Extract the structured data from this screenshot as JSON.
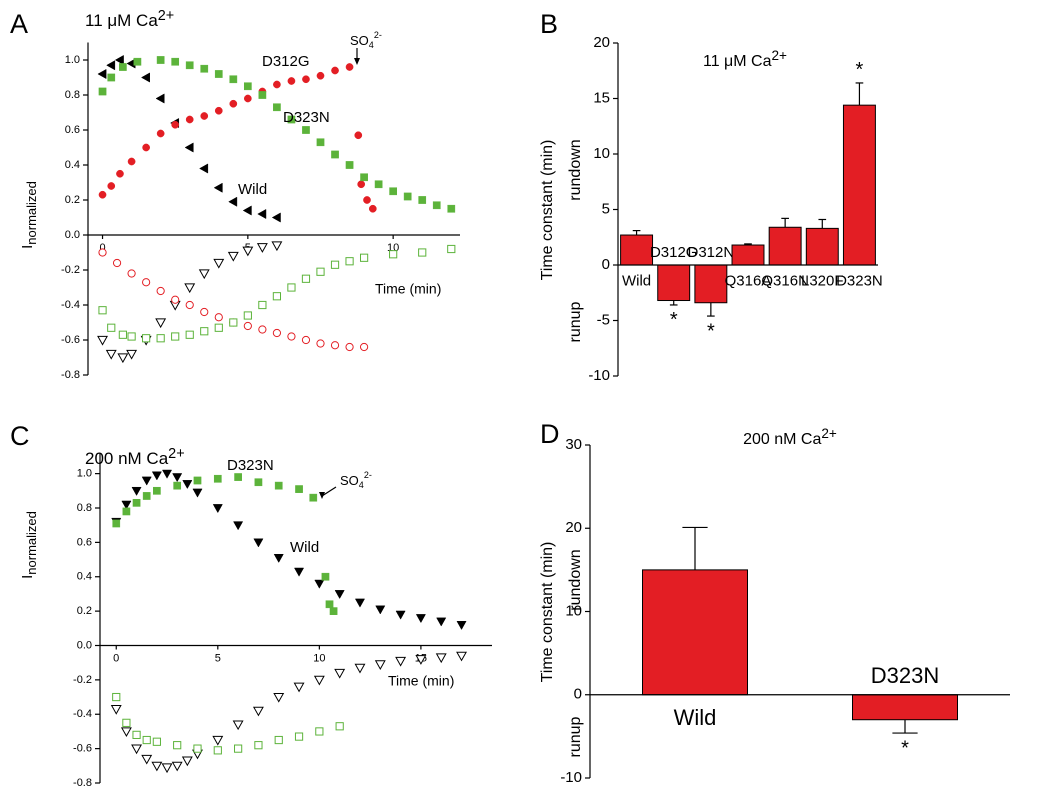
{
  "chart_data": [
    {
      "type": "scatter",
      "panel_label": "A",
      "title": "11 μM Ca",
      "title_superscript": "2+",
      "xlabel": "Time (min)",
      "ylabel": "I",
      "ylabel_subscript": "normalized",
      "xlim": [
        -0.5,
        12.3
      ],
      "xticks": [
        0,
        5,
        10
      ],
      "ylim": [
        -0.8,
        1.1
      ],
      "yticks": [
        {
          "value": 1,
          "label": "1.0"
        },
        0.8,
        0.6,
        0.4,
        0.2,
        {
          "value": 0,
          "label": "0.0"
        },
        -0.2,
        -0.4,
        -0.6,
        -0.8
      ],
      "annotation": {
        "text": "SO",
        "sub": "4",
        "sup": "2-"
      },
      "series": [
        {
          "name": "Wild",
          "color": "#000000",
          "marker": "triangle-left",
          "filled": true,
          "x": [
            0,
            0.3,
            0.6,
            1,
            1.5,
            2,
            2.5,
            3,
            3.5,
            4,
            4.5,
            5,
            5.5,
            6
          ],
          "values": [
            0.92,
            0.97,
            1.0,
            0.98,
            0.9,
            0.78,
            0.64,
            0.5,
            0.38,
            0.27,
            0.19,
            0.14,
            0.12,
            0.1
          ]
        },
        {
          "name": "D312G",
          "color": "#e31e24",
          "marker": "circle",
          "filled": true,
          "x": [
            0,
            0.3,
            0.6,
            1,
            1.5,
            2,
            2.5,
            3,
            3.5,
            4,
            4.5,
            5,
            5.5,
            6,
            6.5,
            7,
            7.5,
            8,
            8.5,
            8.8,
            8.9,
            9.1,
            9.3
          ],
          "values": [
            0.23,
            0.28,
            0.35,
            0.42,
            0.5,
            0.58,
            0.63,
            0.66,
            0.68,
            0.71,
            0.75,
            0.78,
            0.82,
            0.86,
            0.88,
            0.89,
            0.91,
            0.94,
            0.96,
            0.57,
            0.29,
            0.2,
            0.15
          ]
        },
        {
          "name": "D323N",
          "color": "#5cb33a",
          "marker": "square",
          "filled": true,
          "x": [
            0,
            0.3,
            0.7,
            1.2,
            2,
            2.5,
            3,
            3.5,
            4,
            4.5,
            5,
            5.5,
            6,
            6.5,
            7,
            7.5,
            8,
            8.5,
            9,
            9.5,
            10,
            10.5,
            11,
            11.5,
            12
          ],
          "values": [
            0.82,
            0.9,
            0.96,
            0.99,
            1.0,
            0.99,
            0.97,
            0.95,
            0.92,
            0.89,
            0.85,
            0.8,
            0.73,
            0.66,
            0.6,
            0.53,
            0.46,
            0.4,
            0.33,
            0.29,
            0.25,
            0.22,
            0.2,
            0.17,
            0.15
          ]
        },
        {
          "color": "#000000",
          "marker": "triangle-down",
          "filled": false,
          "x": [
            0,
            0.3,
            0.7,
            1,
            1.5,
            2,
            2.5,
            3,
            3.5,
            4,
            4.5,
            5,
            5.5,
            6
          ],
          "values": [
            -0.6,
            -0.68,
            -0.7,
            -0.68,
            -0.6,
            -0.5,
            -0.4,
            -0.3,
            -0.22,
            -0.16,
            -0.12,
            -0.09,
            -0.07,
            -0.06
          ]
        },
        {
          "color": "#e31e24",
          "marker": "circle",
          "filled": false,
          "x": [
            0,
            0.5,
            1,
            1.5,
            2,
            2.5,
            3,
            3.5,
            4,
            4.5,
            5,
            5.5,
            6,
            6.5,
            7,
            7.5,
            8,
            8.5,
            9
          ],
          "values": [
            -0.1,
            -0.16,
            -0.22,
            -0.27,
            -0.32,
            -0.37,
            -0.4,
            -0.44,
            -0.47,
            -0.5,
            -0.52,
            -0.54,
            -0.56,
            -0.58,
            -0.6,
            -0.62,
            -0.63,
            -0.64,
            -0.64
          ]
        },
        {
          "color": "#5cb33a",
          "marker": "square",
          "filled": false,
          "x": [
            0,
            0.3,
            0.7,
            1,
            1.5,
            2,
            2.5,
            3,
            3.5,
            4,
            4.5,
            5,
            5.5,
            6,
            6.5,
            7,
            7.5,
            8,
            8.5,
            9,
            10,
            11,
            12
          ],
          "values": [
            -0.43,
            -0.53,
            -0.57,
            -0.58,
            -0.59,
            -0.59,
            -0.58,
            -0.57,
            -0.55,
            -0.53,
            -0.5,
            -0.46,
            -0.4,
            -0.35,
            -0.3,
            -0.25,
            -0.21,
            -0.17,
            -0.15,
            -0.13,
            -0.11,
            -0.1,
            -0.08
          ]
        }
      ]
    },
    {
      "type": "bar",
      "panel_label": "B",
      "title": "11 μM Ca",
      "title_superscript": "2+",
      "ylabel": "Time constant (min)",
      "ylabel_positive": "rundown",
      "ylabel_negative": "runup",
      "categories": [
        "Wild",
        "D312G",
        "D312N",
        "Q316A",
        "Q316N",
        "L320F",
        "D323N"
      ],
      "values": [
        2.7,
        -3.2,
        -3.4,
        1.8,
        3.4,
        3.3,
        14.4
      ],
      "errors": [
        0.4,
        0.4,
        1.2,
        0.1,
        0.8,
        0.8,
        2.0
      ],
      "significance": [
        null,
        "*",
        "*",
        null,
        null,
        null,
        "*"
      ],
      "color": "#e31e24",
      "ylim": [
        -10,
        20
      ],
      "yticks": [
        -10,
        -5,
        0,
        5,
        10,
        15,
        20
      ]
    },
    {
      "type": "scatter",
      "panel_label": "C",
      "title": "200 nM Ca",
      "title_superscript": "2+",
      "xlabel": "Time (min)",
      "ylabel": "I",
      "ylabel_subscript": "normalized",
      "xlim": [
        -0.8,
        18.5
      ],
      "xticks": [
        0,
        5,
        10,
        15
      ],
      "ylim": [
        -0.8,
        1.12
      ],
      "yticks": [
        {
          "value": 1,
          "label": "1.0"
        },
        0.8,
        0.6,
        0.4,
        0.2,
        {
          "value": 0,
          "label": "0.0"
        },
        -0.2,
        -0.4,
        -0.6,
        -0.8
      ],
      "annotation": {
        "text": "SO",
        "sub": "4",
        "sup": "2-"
      },
      "series": [
        {
          "name": "Wild",
          "color": "#000000",
          "marker": "triangle-down",
          "filled": true,
          "x": [
            0,
            0.5,
            1,
            1.5,
            2,
            2.5,
            3,
            3.5,
            4,
            5,
            6,
            7,
            8,
            9,
            10,
            11,
            12,
            13,
            14,
            15,
            16,
            17
          ],
          "values": [
            0.72,
            0.82,
            0.9,
            0.96,
            0.99,
            1.0,
            0.98,
            0.94,
            0.89,
            0.8,
            0.7,
            0.6,
            0.51,
            0.43,
            0.36,
            0.3,
            0.25,
            0.21,
            0.18,
            0.16,
            0.14,
            0.12
          ]
        },
        {
          "name": "D323N",
          "color": "#5cb33a",
          "marker": "square",
          "filled": true,
          "x": [
            0,
            0.5,
            1,
            1.5,
            2,
            3,
            4,
            5,
            6,
            7,
            8,
            9,
            9.7,
            10.3,
            10.5,
            10.7
          ],
          "values": [
            0.71,
            0.78,
            0.83,
            0.87,
            0.9,
            0.93,
            0.96,
            0.97,
            0.98,
            0.95,
            0.93,
            0.91,
            0.86,
            0.4,
            0.24,
            0.2
          ]
        },
        {
          "color": "#000000",
          "marker": "triangle-down",
          "filled": false,
          "x": [
            0,
            0.5,
            1,
            1.5,
            2,
            2.5,
            3,
            3.5,
            4,
            5,
            6,
            7,
            8,
            9,
            10,
            11,
            12,
            13,
            14,
            15,
            16,
            17
          ],
          "values": [
            -0.37,
            -0.5,
            -0.6,
            -0.66,
            -0.7,
            -0.71,
            -0.7,
            -0.67,
            -0.63,
            -0.55,
            -0.46,
            -0.38,
            -0.3,
            -0.24,
            -0.2,
            -0.16,
            -0.13,
            -0.11,
            -0.09,
            -0.08,
            -0.07,
            -0.06
          ]
        },
        {
          "color": "#5cb33a",
          "marker": "square",
          "filled": false,
          "x": [
            0,
            0.5,
            1,
            1.5,
            2,
            3,
            4,
            5,
            6,
            7,
            8,
            9,
            10,
            11
          ],
          "values": [
            -0.3,
            -0.45,
            -0.52,
            -0.55,
            -0.56,
            -0.58,
            -0.6,
            -0.61,
            -0.6,
            -0.58,
            -0.55,
            -0.53,
            -0.5,
            -0.47
          ]
        }
      ]
    },
    {
      "type": "bar",
      "panel_label": "D",
      "title": "200 nM Ca",
      "title_superscript": "2+",
      "ylabel": "Time constant (min)",
      "ylabel_positive": "rundown",
      "ylabel_negative": "runup",
      "categories": [
        "Wild",
        "D323N"
      ],
      "values": [
        15,
        -3
      ],
      "errors": [
        5.1,
        1.6
      ],
      "significance": [
        null,
        "*"
      ],
      "color": "#e31e24",
      "ylim": [
        -10,
        30
      ],
      "yticks": [
        -10,
        0,
        10,
        20,
        30
      ]
    }
  ]
}
